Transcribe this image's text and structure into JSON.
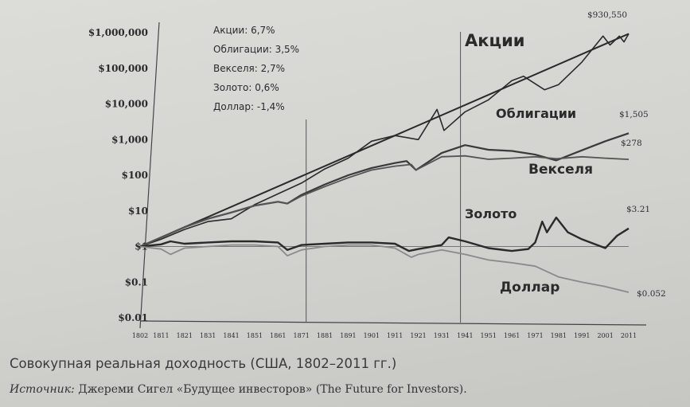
{
  "caption": "Совокупная реальная доходность (США, 1802–2011 гг.)",
  "source": {
    "lead": "Источник:",
    "text": "Джереми Сигел «Будущее инвесторов» (The Future for Investors)."
  },
  "chart_data": {
    "type": "line",
    "y_scale": "log",
    "ylim": [
      0.01,
      1500000
    ],
    "xlim": [
      1802,
      2011
    ],
    "y_ticks": [
      {
        "value": 1000000,
        "label": "$1,000,000"
      },
      {
        "value": 100000,
        "label": "$100,000"
      },
      {
        "value": 10000,
        "label": "$10,000"
      },
      {
        "value": 1000,
        "label": "$1,000"
      },
      {
        "value": 100,
        "label": "$100"
      },
      {
        "value": 10,
        "label": "$10"
      },
      {
        "value": 1,
        "label": "$1"
      },
      {
        "value": 0.1,
        "label": "$0.1"
      },
      {
        "value": 0.01,
        "label": "$0.01"
      }
    ],
    "x_ticks": [
      1802,
      1811,
      1821,
      1831,
      1841,
      1851,
      1861,
      1871,
      1881,
      1891,
      1901,
      1911,
      1921,
      1931,
      1941,
      1951,
      1961,
      1971,
      1981,
      1991,
      2001,
      2011
    ],
    "vertical_markers": [
      1871,
      1937
    ],
    "reference_line": 1,
    "legend": [
      "Акции: 6,7%",
      "Облигации: 3,5%",
      "Векселя: 2,7%",
      "Золото: 0,6%",
      "Доллар: -1,4%"
    ],
    "series": [
      {
        "name": "Акции",
        "end_label": "$930,550",
        "color": "#2a2a2a",
        "points": [
          [
            1802,
            1
          ],
          [
            1811,
            1.6
          ],
          [
            1821,
            3
          ],
          [
            1831,
            5
          ],
          [
            1841,
            6
          ],
          [
            1851,
            15
          ],
          [
            1861,
            30
          ],
          [
            1871,
            60
          ],
          [
            1881,
            150
          ],
          [
            1891,
            300
          ],
          [
            1901,
            900
          ],
          [
            1911,
            1300
          ],
          [
            1921,
            1000
          ],
          [
            1929,
            7000
          ],
          [
            1932,
            1800
          ],
          [
            1941,
            6000
          ],
          [
            1951,
            13000
          ],
          [
            1961,
            45000
          ],
          [
            1966,
            60000
          ],
          [
            1975,
            25000
          ],
          [
            1981,
            35000
          ],
          [
            1991,
            150000
          ],
          [
            2000,
            800000
          ],
          [
            2003,
            450000
          ],
          [
            2007,
            800000
          ],
          [
            2009,
            550000
          ],
          [
            2011,
            930550
          ]
        ]
      },
      {
        "name": "Облигации",
        "end_label": "$1,505",
        "color": "#3a3a3a",
        "points": [
          [
            1802,
            1
          ],
          [
            1811,
            1.8
          ],
          [
            1821,
            3.5
          ],
          [
            1831,
            6
          ],
          [
            1841,
            9
          ],
          [
            1851,
            14
          ],
          [
            1861,
            18
          ],
          [
            1865,
            16
          ],
          [
            1871,
            28
          ],
          [
            1881,
            55
          ],
          [
            1891,
            100
          ],
          [
            1901,
            160
          ],
          [
            1911,
            220
          ],
          [
            1916,
            250
          ],
          [
            1920,
            140
          ],
          [
            1931,
            420
          ],
          [
            1941,
            700
          ],
          [
            1951,
            520
          ],
          [
            1961,
            480
          ],
          [
            1971,
            380
          ],
          [
            1980,
            260
          ],
          [
            1991,
            500
          ],
          [
            2001,
            900
          ],
          [
            2011,
            1505
          ]
        ]
      },
      {
        "name": "Векселя",
        "end_label": "$278",
        "color": "#555555",
        "points": [
          [
            1802,
            1
          ],
          [
            1811,
            1.8
          ],
          [
            1821,
            3.5
          ],
          [
            1831,
            6
          ],
          [
            1841,
            9
          ],
          [
            1851,
            14
          ],
          [
            1861,
            18
          ],
          [
            1865,
            16
          ],
          [
            1871,
            26
          ],
          [
            1881,
            48
          ],
          [
            1891,
            85
          ],
          [
            1901,
            140
          ],
          [
            1911,
            180
          ],
          [
            1918,
            200
          ],
          [
            1920,
            140
          ],
          [
            1931,
            330
          ],
          [
            1941,
            350
          ],
          [
            1951,
            280
          ],
          [
            1961,
            300
          ],
          [
            1971,
            330
          ],
          [
            1980,
            290
          ],
          [
            1991,
            330
          ],
          [
            2001,
            300
          ],
          [
            2011,
            278
          ]
        ]
      },
      {
        "name": "Золото",
        "end_label": "$3.21",
        "color": "#2a2a2a",
        "points": [
          [
            1802,
            1
          ],
          [
            1811,
            1.15
          ],
          [
            1815,
            1.4
          ],
          [
            1821,
            1.2
          ],
          [
            1831,
            1.3
          ],
          [
            1841,
            1.4
          ],
          [
            1851,
            1.4
          ],
          [
            1861,
            1.3
          ],
          [
            1865,
            0.8
          ],
          [
            1871,
            1.1
          ],
          [
            1881,
            1.2
          ],
          [
            1891,
            1.3
          ],
          [
            1901,
            1.3
          ],
          [
            1911,
            1.2
          ],
          [
            1917,
            0.75
          ],
          [
            1921,
            0.85
          ],
          [
            1931,
            1.1
          ],
          [
            1934,
            1.8
          ],
          [
            1941,
            1.4
          ],
          [
            1951,
            0.9
          ],
          [
            1961,
            0.75
          ],
          [
            1968,
            0.85
          ],
          [
            1971,
            1.3
          ],
          [
            1974,
            5
          ],
          [
            1976,
            2.5
          ],
          [
            1980,
            6.5
          ],
          [
            1985,
            2.5
          ],
          [
            1991,
            1.6
          ],
          [
            2001,
            0.9
          ],
          [
            2006,
            2
          ],
          [
            2011,
            3.21
          ]
        ]
      },
      {
        "name": "Доллар",
        "end_label": "$0.052",
        "color": "#8a8a8a",
        "points": [
          [
            1802,
            1
          ],
          [
            1811,
            0.85
          ],
          [
            1815,
            0.6
          ],
          [
            1821,
            0.9
          ],
          [
            1831,
            1
          ],
          [
            1841,
            1.1
          ],
          [
            1851,
            1.1
          ],
          [
            1861,
            1
          ],
          [
            1865,
            0.55
          ],
          [
            1871,
            0.8
          ],
          [
            1881,
            1
          ],
          [
            1891,
            1.1
          ],
          [
            1901,
            1.1
          ],
          [
            1911,
            0.9
          ],
          [
            1918,
            0.5
          ],
          [
            1921,
            0.6
          ],
          [
            1931,
            0.8
          ],
          [
            1941,
            0.6
          ],
          [
            1951,
            0.42
          ],
          [
            1961,
            0.35
          ],
          [
            1971,
            0.28
          ],
          [
            1981,
            0.14
          ],
          [
            1991,
            0.1
          ],
          [
            2001,
            0.075
          ],
          [
            2011,
            0.052
          ]
        ]
      }
    ],
    "labels": [
      {
        "text": "Акции",
        "series": "Акции"
      },
      {
        "text": "Облигации",
        "series": "Облигации"
      },
      {
        "text": "Векселя",
        "series": "Векселя"
      },
      {
        "text": "Золото",
        "series": "Золото"
      },
      {
        "text": "Доллар",
        "series": "Доллар"
      }
    ]
  }
}
